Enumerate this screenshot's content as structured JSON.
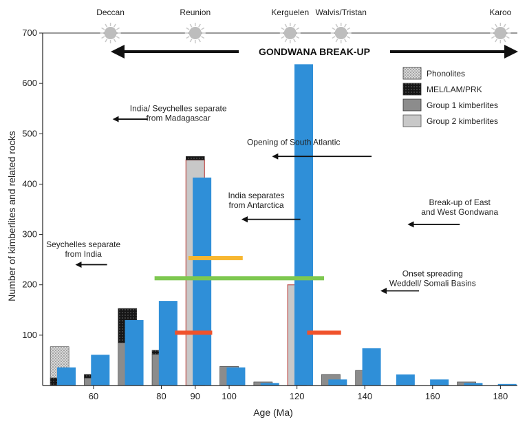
{
  "chart_data": {
    "type": "bar",
    "xlabel": "Age (Ma)",
    "ylabel": "Number of kimberlites and related rocks",
    "xlim": [
      45,
      185
    ],
    "ylim": [
      0,
      700
    ],
    "x_ticks": [
      60,
      80,
      90,
      100,
      120,
      140,
      160,
      180
    ],
    "y_ticks": [
      100,
      200,
      300,
      400,
      500,
      600,
      700
    ],
    "highlighted_ticks": [
      90,
      120
    ],
    "colors": {
      "blue": "#2f8fd8",
      "phonolites": "#cfcfcf",
      "mel": "#1a1a1a",
      "group1": "#8c8c8c",
      "group2": "#c8c8c8",
      "group2_border": "#c0504d",
      "yellow": "#f7b731",
      "green": "#7ec850",
      "red": "#f0522b",
      "highlight_tick": "#c0504d"
    },
    "series": [
      {
        "name": "Phonolites",
        "key": "phonolites",
        "bars": [
          {
            "x": 50,
            "y0": 0,
            "y1": 15
          },
          {
            "x": 50,
            "y0": 15,
            "y1": 77
          }
        ]
      },
      {
        "name": "MEL/LAM/PRK",
        "key": "mel",
        "bars": [
          {
            "x": 50,
            "y0": 0,
            "y1": 15
          },
          {
            "x": 60,
            "y0": 15,
            "y1": 22
          },
          {
            "x": 70,
            "y0": 85,
            "y1": 153
          },
          {
            "x": 80,
            "y0": 62,
            "y1": 70
          },
          {
            "x": 90,
            "y0": 448,
            "y1": 455
          }
        ]
      },
      {
        "name": "Group 1 kimberlites",
        "key": "group1",
        "bars": [
          {
            "x": 60,
            "y0": 0,
            "y1": 15
          },
          {
            "x": 70,
            "y0": 0,
            "y1": 85
          },
          {
            "x": 80,
            "y0": 0,
            "y1": 62
          },
          {
            "x": 100,
            "y0": 0,
            "y1": 38
          },
          {
            "x": 110,
            "y0": 0,
            "y1": 7
          },
          {
            "x": 130,
            "y0": 0,
            "y1": 22
          },
          {
            "x": 140,
            "y0": 0,
            "y1": 30
          },
          {
            "x": 170,
            "y0": 0,
            "y1": 7
          }
        ]
      },
      {
        "name": "Group 2 kimberlites",
        "key": "group2",
        "bars": [
          {
            "x": 90,
            "y0": 0,
            "y1": 448
          },
          {
            "x": 120,
            "y0": 0,
            "y1": 200
          }
        ]
      },
      {
        "name": "",
        "key": "blue",
        "bars": [
          {
            "x": 52,
            "y0": 0,
            "y1": 36
          },
          {
            "x": 62,
            "y0": 0,
            "y1": 61
          },
          {
            "x": 72,
            "y0": 0,
            "y1": 130
          },
          {
            "x": 82,
            "y0": 0,
            "y1": 168
          },
          {
            "x": 92,
            "y0": 0,
            "y1": 413
          },
          {
            "x": 102,
            "y0": 0,
            "y1": 36
          },
          {
            "x": 112,
            "y0": 0,
            "y1": 5
          },
          {
            "x": 122,
            "y0": 0,
            "y1": 638
          },
          {
            "x": 132,
            "y0": 0,
            "y1": 12
          },
          {
            "x": 142,
            "y0": 0,
            "y1": 74
          },
          {
            "x": 152,
            "y0": 0,
            "y1": 22
          },
          {
            "x": 162,
            "y0": 0,
            "y1": 12
          },
          {
            "x": 172,
            "y0": 0,
            "y1": 5
          },
          {
            "x": 182,
            "y0": 0,
            "y1": 3
          }
        ]
      }
    ],
    "horizontal_segments": [
      {
        "color_key": "yellow",
        "x0": 88,
        "x1": 104,
        "y": 253
      },
      {
        "color_key": "green",
        "x0": 78,
        "x1": 128,
        "y": 213
      },
      {
        "color_key": "red",
        "x0": 84,
        "x1": 95,
        "y": 105
      },
      {
        "color_key": "red",
        "x0": 123,
        "x1": 133,
        "y": 105
      }
    ],
    "legend": [
      {
        "label": "Phonolites",
        "key": "phonolites"
      },
      {
        "label": "MEL/LAM/PRK",
        "key": "mel"
      },
      {
        "label": "Group 1 kimberlites",
        "key": "group1"
      },
      {
        "label": "Group 2 kimberlites",
        "key": "group2"
      }
    ],
    "legend_position": "top-right",
    "events": [
      {
        "label": "Deccan",
        "x": 65
      },
      {
        "label": "Reunion",
        "x": 90
      },
      {
        "label": "Kerguelen",
        "x": 118
      },
      {
        "label": "Walvis/Tristan",
        "x": 133
      },
      {
        "label": "Karoo",
        "x": 180
      }
    ],
    "banner": {
      "label": "GONDWANA BREAK-UP",
      "x0": 45,
      "x1": 185
    },
    "annotations": [
      {
        "lines": [
          "India/ Seychelles separate",
          "from Madagascar"
        ],
        "x": 85,
        "y": 545,
        "arrow": {
          "x0": 76,
          "x1": 66,
          "y": 529
        }
      },
      {
        "lines": [
          "Opening of South Atlantic"
        ],
        "x": 119,
        "y": 478,
        "arrow": {
          "x0": 142,
          "x1": 113,
          "y": 455
        }
      },
      {
        "lines": [
          "India separates",
          "from Antarctica"
        ],
        "x": 108,
        "y": 372,
        "arrow": {
          "x0": 121,
          "x1": 104,
          "y": 330
        }
      },
      {
        "lines": [
          "Break-up of East",
          "and West Gondwana"
        ],
        "x": 168,
        "y": 358,
        "arrow": {
          "x0": 168,
          "x1": 153,
          "y": 320
        }
      },
      {
        "lines": [
          "Seychelles separate",
          "from India"
        ],
        "x": 57,
        "y": 275,
        "arrow": {
          "x0": 64,
          "x1": 55,
          "y": 240
        }
      },
      {
        "lines": [
          "Onset spreading",
          "Weddell/ Somali Basins"
        ],
        "x": 160,
        "y": 217,
        "arrow": {
          "x0": 156,
          "x1": 145,
          "y": 188
        }
      }
    ]
  }
}
